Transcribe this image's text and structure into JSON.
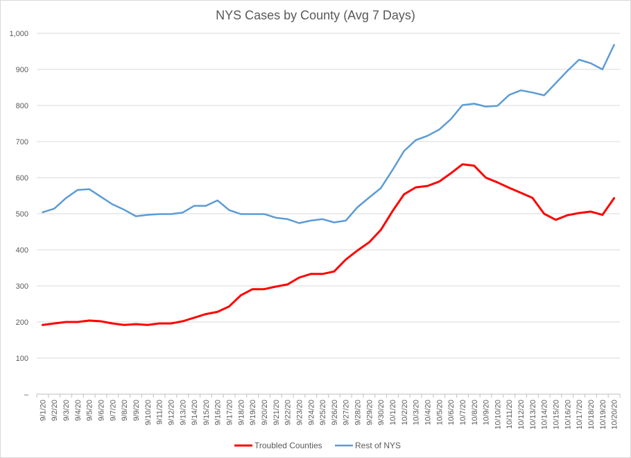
{
  "chart_data": {
    "type": "line",
    "title": "NYS Cases by County (Avg 7 Days)",
    "xlabel": "",
    "ylabel": "",
    "ylim": [
      0,
      1000
    ],
    "yticks": [
      0,
      100,
      200,
      300,
      400,
      500,
      600,
      700,
      800,
      900,
      1000
    ],
    "ytick_labels": [
      "–",
      "100",
      "200",
      "300",
      "400",
      "500",
      "600",
      "700",
      "800",
      "900",
      "1,000"
    ],
    "grid": true,
    "legend_position": "bottom",
    "categories": [
      "9/1/20",
      "9/2/20",
      "9/3/20",
      "9/4/20",
      "9/5/20",
      "9/6/20",
      "9/7/20",
      "9/8/20",
      "9/9/20",
      "9/10/20",
      "9/11/20",
      "9/12/20",
      "9/13/20",
      "9/14/20",
      "9/15/20",
      "9/16/20",
      "9/17/20",
      "9/18/20",
      "9/19/20",
      "9/20/20",
      "9/21/20",
      "9/22/20",
      "9/23/20",
      "9/24/20",
      "9/25/20",
      "9/26/20",
      "9/27/20",
      "9/28/20",
      "9/29/20",
      "9/30/20",
      "10/1/20",
      "10/2/20",
      "10/3/20",
      "10/4/20",
      "10/5/20",
      "10/6/20",
      "10/7/20",
      "10/8/20",
      "10/9/20",
      "10/10/20",
      "10/11/20",
      "10/12/20",
      "10/13/20",
      "10/14/20",
      "10/15/20",
      "10/16/20",
      "10/17/20",
      "10/18/20",
      "10/19/20",
      "10/20/20"
    ],
    "series": [
      {
        "name": "Troubled Counties",
        "color": "#ff0000",
        "values": [
          192,
          196,
          200,
          200,
          204,
          202,
          196,
          192,
          194,
          192,
          196,
          196,
          202,
          212,
          222,
          228,
          243,
          274,
          291,
          291,
          298,
          304,
          323,
          333,
          333,
          340,
          373,
          398,
          421,
          455,
          507,
          554,
          573,
          577,
          589,
          612,
          637,
          633,
          600,
          587,
          572,
          558,
          544,
          500,
          483,
          496,
          502,
          506,
          497,
          543
        ]
      },
      {
        "name": "Rest of NYS",
        "color": "#5b9bd5",
        "values": [
          504,
          514,
          543,
          566,
          568,
          547,
          526,
          511,
          493,
          497,
          499,
          499,
          503,
          522,
          522,
          537,
          510,
          499,
          499,
          499,
          489,
          485,
          474,
          481,
          485,
          476,
          481,
          518,
          545,
          571,
          621,
          674,
          704,
          716,
          733,
          762,
          801,
          805,
          797,
          799,
          829,
          842,
          836,
          828,
          862,
          896,
          927,
          917,
          900,
          968
        ]
      }
    ]
  }
}
